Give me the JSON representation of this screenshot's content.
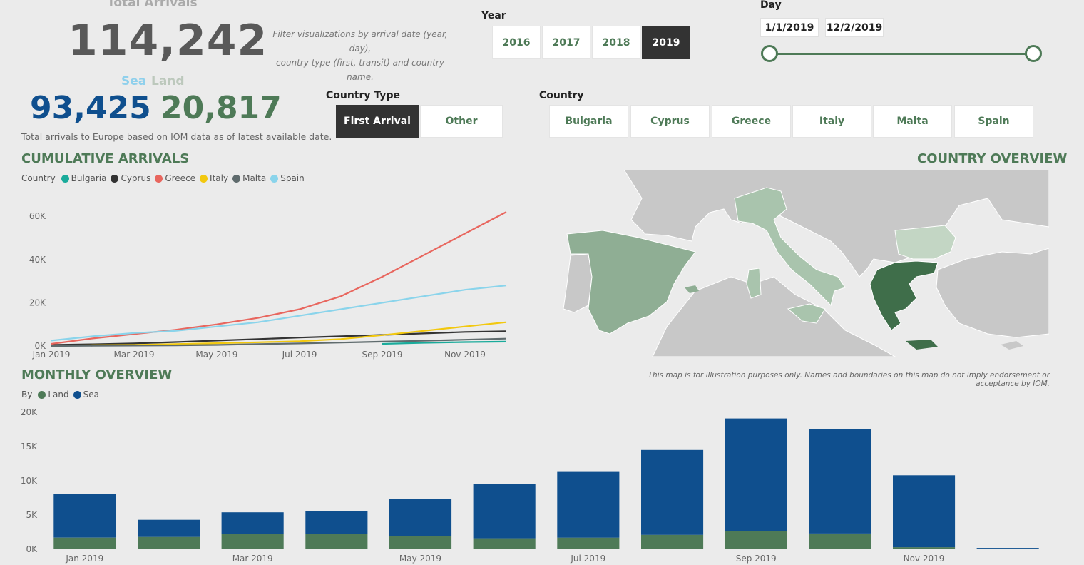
{
  "kpis": {
    "total_label": "Total Arrivals",
    "total_value": "114,242",
    "filter_note_line1": "Filter visualizations by arrival date (year, day),",
    "filter_note_line2": "country type (first, transit) and country name.",
    "sea_label": "Sea",
    "land_label": "Land",
    "sea_value": "93,425",
    "land_value": "20,817",
    "note": "Total arrivals to Europe based on IOM data as of latest available date."
  },
  "year_slicer": {
    "title": "Year",
    "options": [
      {
        "label": "2016",
        "selected": false
      },
      {
        "label": "2017",
        "selected": false
      },
      {
        "label": "2018",
        "selected": false
      },
      {
        "label": "2019",
        "selected": true
      }
    ]
  },
  "day_slicer": {
    "title": "Day",
    "start": "1/1/2019",
    "end": "12/2/2019"
  },
  "country_type_slicer": {
    "title": "Country Type",
    "options": [
      {
        "label": "First Arrival",
        "selected": true
      },
      {
        "label": "Other",
        "selected": false
      }
    ]
  },
  "country_slicer": {
    "title": "Country",
    "options": [
      {
        "label": "Bulgaria"
      },
      {
        "label": "Cyprus"
      },
      {
        "label": "Greece"
      },
      {
        "label": "Italy"
      },
      {
        "label": "Malta"
      },
      {
        "label": "Spain"
      }
    ]
  },
  "map": {
    "title": "COUNTRY OVERVIEW",
    "disclaimer": "This map is for illustration purposes only. Names and boundaries on this map do not imply endorsement or acceptance by IOM.",
    "colors": {
      "background_country": "#c8c8c8",
      "spain": "#8fae94",
      "italy": "#a9c4ad",
      "bulgaria": "#c3d6c4",
      "greece": "#3f6e4a",
      "sea": "#ebebeb"
    }
  },
  "chart_data": [
    {
      "type": "line",
      "title": "CUMULATIVE ARRIVALS",
      "legend_title": "Country",
      "legend_position": "top-left",
      "x_ticks": [
        "Jan 2019",
        "Mar 2019",
        "May 2019",
        "Jul 2019",
        "Sep 2019",
        "Nov 2019"
      ],
      "y_ticks": [
        "0K",
        "20K",
        "40K",
        "60K"
      ],
      "ylim": [
        0,
        66000
      ],
      "x": [
        "2019-01-01",
        "2019-02-01",
        "2019-03-01",
        "2019-04-01",
        "2019-05-01",
        "2019-06-01",
        "2019-07-01",
        "2019-08-01",
        "2019-09-01",
        "2019-10-01",
        "2019-11-01",
        "2019-12-01"
      ],
      "series": [
        {
          "name": "Bulgaria",
          "color": "#1aab9b",
          "values": [
            null,
            null,
            null,
            null,
            null,
            null,
            null,
            null,
            1000,
            1500,
            1800,
            2000
          ]
        },
        {
          "name": "Cyprus",
          "color": "#333333",
          "values": [
            500,
            800,
            1200,
            1800,
            2500,
            3200,
            3900,
            4500,
            5100,
            5800,
            6500,
            6800
          ]
        },
        {
          "name": "Greece",
          "color": "#e8665e",
          "values": [
            1000,
            3500,
            5500,
            7500,
            10000,
            13000,
            17000,
            23000,
            32000,
            42000,
            52000,
            62000
          ]
        },
        {
          "name": "Italy",
          "color": "#f2c80f",
          "values": [
            200,
            350,
            500,
            900,
            1300,
            1700,
            2200,
            3200,
            5000,
            7000,
            9000,
            11000
          ]
        },
        {
          "name": "Malta",
          "color": "#5f6b6d",
          "values": [
            0,
            100,
            200,
            300,
            500,
            900,
            1200,
            1600,
            2000,
            2400,
            2900,
            3400
          ]
        },
        {
          "name": "Spain",
          "color": "#8ad4eb",
          "values": [
            2500,
            4500,
            6000,
            7000,
            9000,
            11000,
            14000,
            17000,
            20000,
            23000,
            26000,
            28000
          ]
        }
      ]
    },
    {
      "type": "bar",
      "title": "MONTHLY OVERVIEW",
      "legend_title": "By",
      "legend_position": "top-left",
      "stacked": true,
      "categories": [
        "Jan 2019",
        "Feb 2019",
        "Mar 2019",
        "Apr 2019",
        "May 2019",
        "Jun 2019",
        "Jul 2019",
        "Aug 2019",
        "Sep 2019",
        "Oct 2019",
        "Nov 2019",
        "Dec 2019"
      ],
      "x_tick_labels": [
        "Jan 2019",
        "",
        "Mar 2019",
        "",
        "May 2019",
        "",
        "Jul 2019",
        "",
        "Sep 2019",
        "",
        "Nov 2019",
        ""
      ],
      "y_ticks": [
        "0K",
        "5K",
        "10K",
        "15K",
        "20K"
      ],
      "ylim": [
        0,
        20000
      ],
      "series": [
        {
          "name": "Land",
          "color": "#4e7a57",
          "values": [
            1700,
            1800,
            2300,
            2200,
            1900,
            1600,
            1700,
            2100,
            2700,
            2300,
            300,
            100
          ]
        },
        {
          "name": "Sea",
          "color": "#0f4f8e",
          "values": [
            6400,
            2500,
            3100,
            3400,
            5400,
            7900,
            9700,
            12400,
            16400,
            15200,
            10500,
            100
          ]
        }
      ]
    }
  ]
}
